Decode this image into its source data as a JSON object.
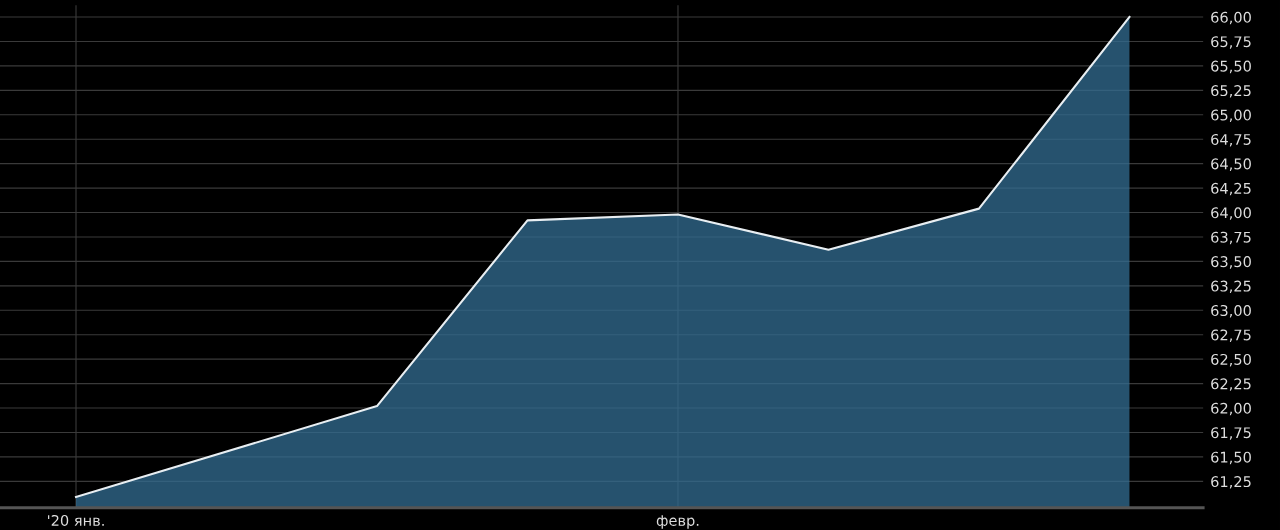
{
  "chart_data": {
    "type": "area",
    "categories": [
      "'20 янв.",
      null,
      null,
      null,
      "февр.",
      null,
      null,
      null
    ],
    "series": [
      {
        "color": "#336e93",
        "values": [
          61.09,
          null,
          62.02,
          63.92,
          63.98,
          63.62,
          64.04,
          66.0
        ]
      }
    ],
    "ylim": [
      60.98,
      66.12
    ],
    "yticks": [
      {
        "value": 61.25,
        "label": "61,25"
      },
      {
        "value": 61.5,
        "label": "61,50"
      },
      {
        "value": 61.75,
        "label": "61,75"
      },
      {
        "value": 62.0,
        "label": "62,00"
      },
      {
        "value": 62.25,
        "label": "62,25"
      },
      {
        "value": 62.5,
        "label": "62,50"
      },
      {
        "value": 62.75,
        "label": "62,75"
      },
      {
        "value": 63.0,
        "label": "63,00"
      },
      {
        "value": 63.25,
        "label": "63,25"
      },
      {
        "value": 63.5,
        "label": "63,50"
      },
      {
        "value": 63.75,
        "label": "63,75"
      },
      {
        "value": 64.0,
        "label": "64,00"
      },
      {
        "value": 64.25,
        "label": "64,25"
      },
      {
        "value": 64.5,
        "label": "64,50"
      },
      {
        "value": 64.75,
        "label": "64,75"
      },
      {
        "value": 65.0,
        "label": "65,00"
      },
      {
        "value": 65.25,
        "label": "65,25"
      },
      {
        "value": 65.5,
        "label": "65,50"
      },
      {
        "value": 65.75,
        "label": "65,75"
      },
      {
        "value": 66.0,
        "label": "66,00"
      }
    ],
    "grid": true
  }
}
